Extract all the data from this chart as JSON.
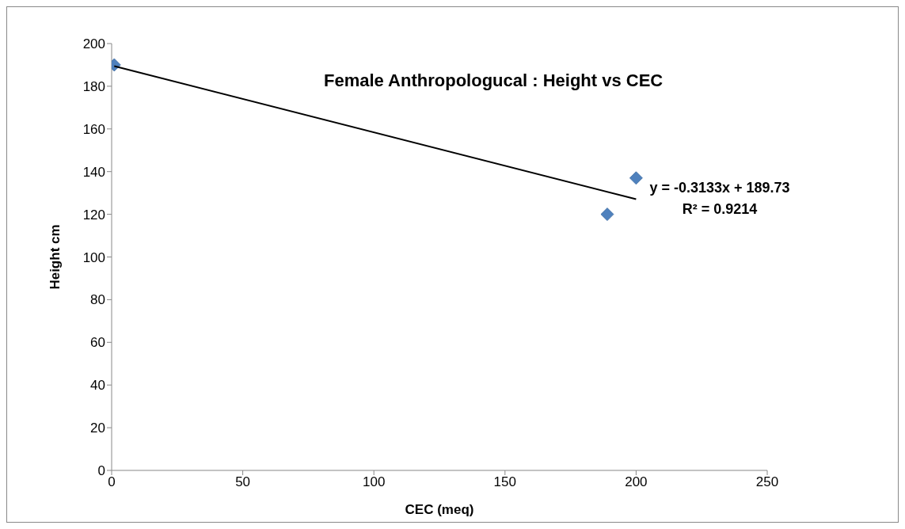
{
  "chart_data": {
    "type": "scatter",
    "title": "Female Anthropologucal :  Height vs CEC",
    "xlabel": "CEC (meq)",
    "ylabel": "Height cm",
    "xlim": [
      0,
      250
    ],
    "xticks": [
      0,
      50,
      100,
      150,
      200,
      250
    ],
    "ylim": [
      0,
      200
    ],
    "yticks": [
      0,
      20,
      40,
      60,
      80,
      100,
      120,
      140,
      160,
      180,
      200
    ],
    "series": [
      {
        "marker": "diamond",
        "color": "#4f81bd",
        "x": [
          1,
          189,
          200
        ],
        "values": [
          190,
          120,
          137
        ]
      },
      {
        "type": "line",
        "marker": "none",
        "color": "#000000",
        "x": [
          1,
          200
        ],
        "values": [
          189.4,
          127.1
        ]
      }
    ],
    "annotations": [
      "y = -0.3133x + 189.73",
      "R² = 0.9214"
    ]
  }
}
